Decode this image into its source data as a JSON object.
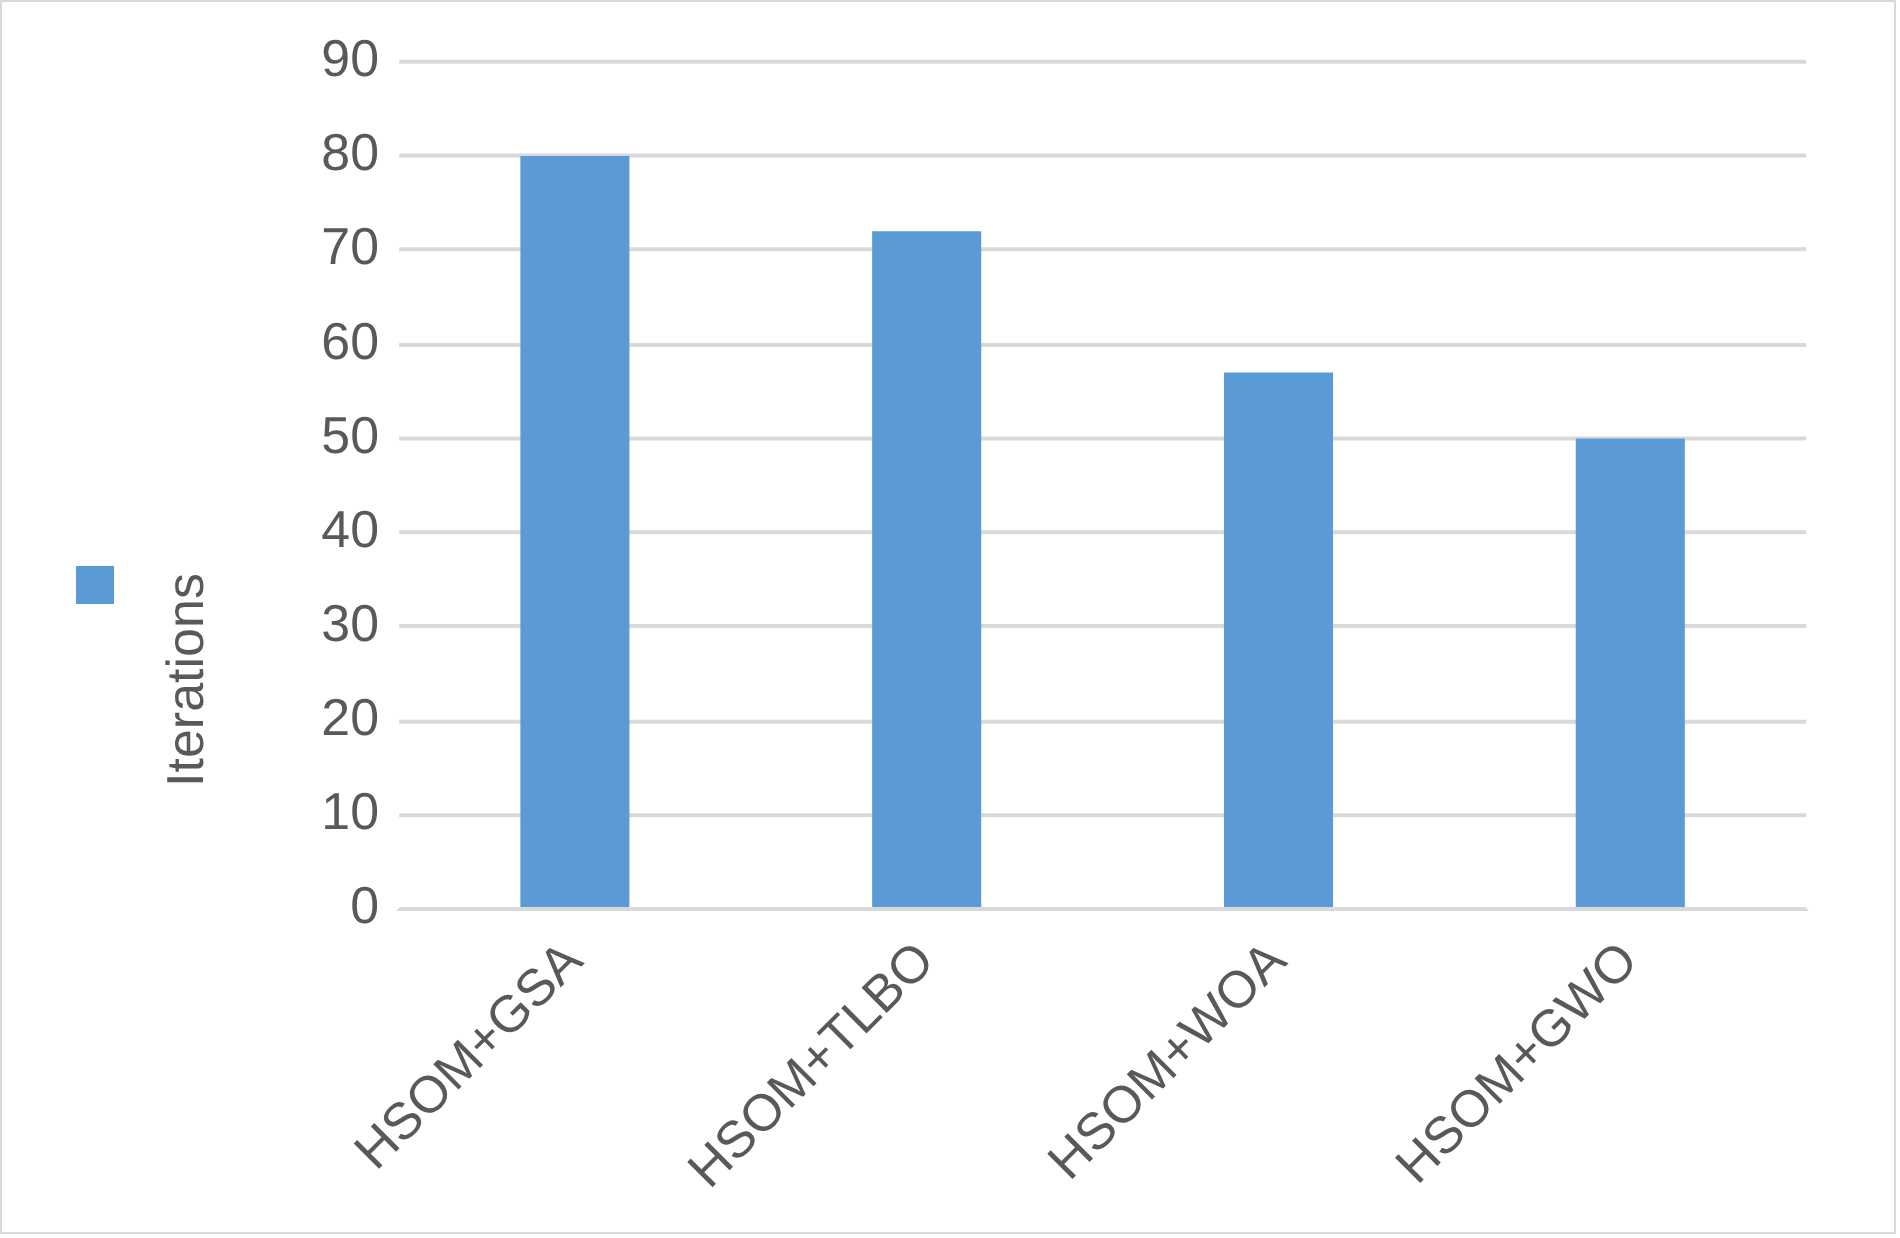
{
  "chart_data": {
    "type": "bar",
    "categories": [
      "HSOM+GSA",
      "HSOM+TLBO",
      "HSOM+WOA",
      "HSOM+GWO"
    ],
    "series": [
      {
        "name": "Iterations",
        "color": "#5b9bd5",
        "values": [
          80,
          72,
          57,
          50
        ]
      }
    ],
    "ylim": [
      0,
      90
    ],
    "yticks": [
      0,
      10,
      20,
      30,
      40,
      50,
      60,
      70,
      80,
      90
    ],
    "grid": "y",
    "legend": "left"
  }
}
